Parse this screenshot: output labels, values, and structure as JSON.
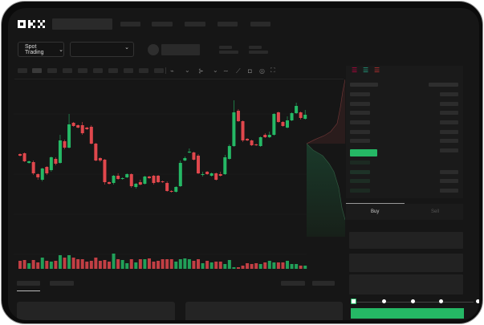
{
  "header": {
    "logo": "OKX",
    "nav_count": 5
  },
  "toolbar": {
    "market_type": "Spot Trading",
    "pair_select_value": ""
  },
  "chart_tools": [
    "chart-type-icon",
    "indicator-icon",
    "draw-line-icon",
    "ruler-icon",
    "camera-icon",
    "settings-icon",
    "fullscreen-icon"
  ],
  "trade": {
    "buy_tab": "Buy",
    "sell_tab": "Sell",
    "slider_percent": 0
  },
  "colors": {
    "up": "#25b865",
    "down": "#e0474c",
    "background": "#161616"
  },
  "chart_data": {
    "type": "candlestick",
    "candles_ohlc_note": "",
    "candles": [
      [
        118,
        119,
        115,
        116
      ],
      [
        119,
        120,
        108,
        109
      ],
      [
        107,
        110,
        106,
        109
      ],
      [
        108,
        110,
        92,
        94
      ],
      [
        93,
        94,
        86,
        89
      ],
      [
        86,
        101,
        84,
        100
      ],
      [
        102,
        103,
        92,
        94
      ],
      [
        98,
        115,
        96,
        114
      ],
      [
        112,
        114,
        104,
        106
      ],
      [
        107,
        142,
        106,
        135
      ],
      [
        134,
        136,
        124,
        126
      ],
      [
        126,
        168,
        125,
        155
      ],
      [
        157,
        158,
        152,
        153
      ],
      [
        154,
        155,
        150,
        151
      ],
      [
        154,
        158,
        142,
        144
      ],
      [
        151,
        152,
        148,
        149
      ],
      [
        152,
        154,
        130,
        131
      ],
      [
        131,
        132,
        109,
        110
      ],
      [
        113,
        114,
        108,
        110
      ],
      [
        111,
        112,
        80,
        83
      ],
      [
        83,
        84,
        80,
        81
      ],
      [
        82,
        92,
        80,
        91
      ],
      [
        91,
        94,
        86,
        87
      ],
      [
        87,
        89,
        86,
        88
      ],
      [
        89,
        94,
        88,
        93
      ],
      [
        93,
        94,
        76,
        78
      ],
      [
        77,
        82,
        75,
        81
      ],
      [
        83,
        86,
        79,
        80
      ],
      [
        81,
        91,
        80,
        90
      ],
      [
        90,
        91,
        87,
        88
      ],
      [
        91,
        92,
        80,
        82
      ],
      [
        91,
        92,
        82,
        83
      ],
      [
        84,
        85,
        82,
        83
      ],
      [
        82,
        84,
        71,
        72
      ],
      [
        72,
        73,
        70,
        71
      ],
      [
        71,
        78,
        70,
        77
      ],
      [
        78,
        110,
        77,
        107
      ],
      [
        110,
        115,
        109,
        113
      ],
      [
        120,
        125,
        119,
        121
      ],
      [
        120,
        121,
        110,
        111
      ],
      [
        116,
        118,
        93,
        94
      ],
      [
        92,
        96,
        90,
        93
      ],
      [
        96,
        97,
        92,
        93
      ],
      [
        91,
        95,
        90,
        94
      ],
      [
        94,
        95,
        85,
        86
      ],
      [
        93,
        96,
        90,
        91
      ],
      [
        93,
        117,
        92,
        114
      ],
      [
        112,
        130,
        111,
        128
      ],
      [
        128,
        185,
        127,
        170
      ],
      [
        172,
        174,
        158,
        159
      ],
      [
        159,
        160,
        133,
        135
      ],
      [
        137,
        138,
        134,
        135
      ],
      [
        135,
        136,
        128,
        129
      ],
      [
        130,
        131,
        128,
        129
      ],
      [
        128,
        140,
        127,
        139
      ],
      [
        142,
        144,
        138,
        139
      ],
      [
        139,
        146,
        138,
        142
      ],
      [
        142,
        169,
        141,
        168
      ],
      [
        170,
        171,
        157,
        158
      ],
      [
        158,
        159,
        152,
        153
      ],
      [
        151,
        165,
        150,
        160
      ],
      [
        160,
        170,
        159,
        169
      ],
      [
        169,
        182,
        168,
        178
      ],
      [
        170,
        171,
        161,
        163
      ],
      [
        162,
        173,
        161,
        167
      ]
    ],
    "volumes": [
      10,
      11,
      7,
      11,
      8,
      14,
      10,
      9,
      10,
      17,
      14,
      17,
      14,
      12,
      12,
      9,
      10,
      14,
      10,
      11,
      9,
      19,
      12,
      11,
      7,
      12,
      8,
      12,
      12,
      13,
      9,
      10,
      12,
      12,
      12,
      9,
      12,
      13,
      12,
      10,
      12,
      7,
      10,
      8,
      9,
      9,
      6,
      11,
      2,
      2,
      4,
      7,
      6,
      7,
      6,
      8,
      10,
      8,
      8,
      8,
      10,
      6,
      6,
      4,
      4
    ]
  }
}
